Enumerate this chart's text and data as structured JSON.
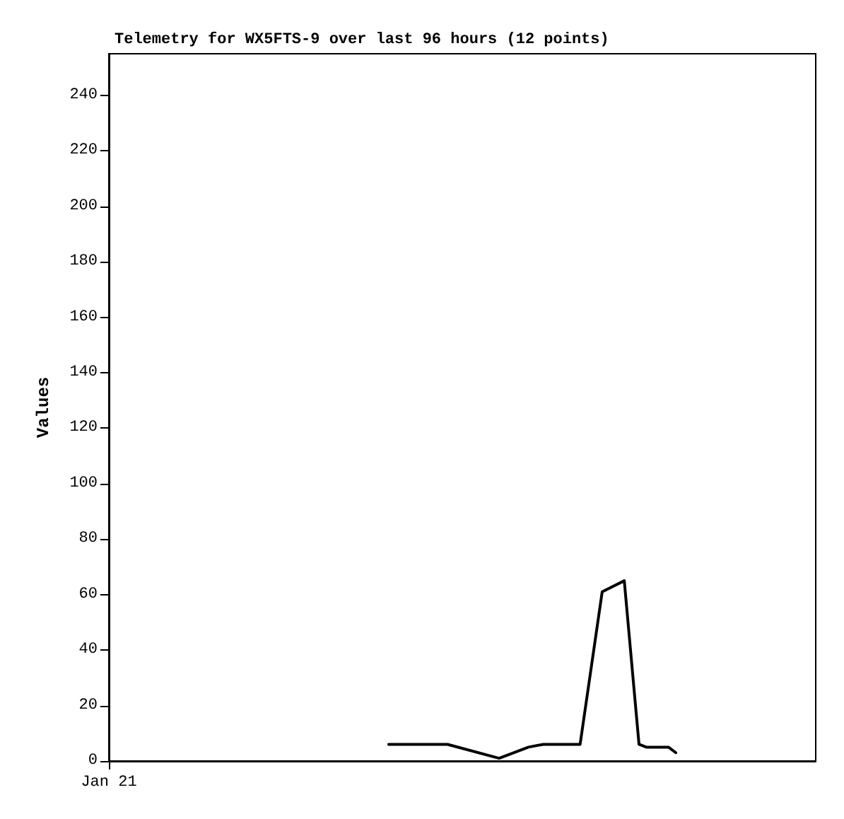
{
  "chart_data": {
    "type": "line",
    "title": "Telemetry for WX5FTS-9 over last 96 hours (12 points)",
    "ylabel": "Values",
    "categories": [
      "Jan 21",
      null,
      null,
      null,
      null,
      null,
      null,
      null,
      null,
      null,
      null,
      null,
      null,
      null,
      null,
      null,
      null,
      null,
      null,
      null,
      null,
      null,
      null,
      null,
      null,
      null,
      null,
      null,
      null,
      null,
      null,
      null,
      null,
      null,
      null,
      null,
      null,
      null,
      null,
      null,
      null,
      null,
      null,
      null,
      null,
      null,
      null,
      null,
      null,
      null,
      null,
      null,
      null,
      null,
      null,
      null,
      null,
      null,
      null,
      null,
      null,
      null,
      null,
      null,
      null,
      null,
      null,
      null,
      null,
      null,
      null,
      null,
      null,
      null,
      null,
      null,
      null,
      null,
      null,
      null,
      null,
      null,
      null,
      null,
      null,
      null,
      null,
      null,
      null,
      null,
      null,
      null,
      null,
      null,
      null,
      null,
      null
    ],
    "series": [
      {
        "color": "#000000",
        "values": [
          null,
          null,
          null,
          null,
          null,
          null,
          null,
          null,
          null,
          null,
          null,
          null,
          null,
          null,
          null,
          null,
          null,
          null,
          null,
          null,
          null,
          null,
          null,
          null,
          null,
          null,
          null,
          null,
          null,
          null,
          null,
          null,
          null,
          null,
          null,
          null,
          null,
          null,
          6,
          null,
          null,
          null,
          null,
          null,
          null,
          null,
          6,
          null,
          null,
          null,
          null,
          null,
          null,
          1,
          null,
          null,
          null,
          5,
          null,
          6,
          null,
          null,
          null,
          null,
          6,
          null,
          null,
          61,
          null,
          null,
          65,
          null,
          6,
          5,
          null,
          null,
          5,
          3,
          null,
          null,
          null,
          null,
          null,
          null,
          null,
          null,
          null,
          null,
          null,
          null,
          null,
          null,
          null,
          null,
          null,
          null,
          null
        ]
      }
    ],
    "ylim": [
      0,
      255
    ],
    "yticks": [
      0,
      20,
      40,
      60,
      80,
      100,
      120,
      140,
      160,
      180,
      200,
      220,
      240
    ],
    "grid": false,
    "marker": "none",
    "line_style": "solid"
  }
}
